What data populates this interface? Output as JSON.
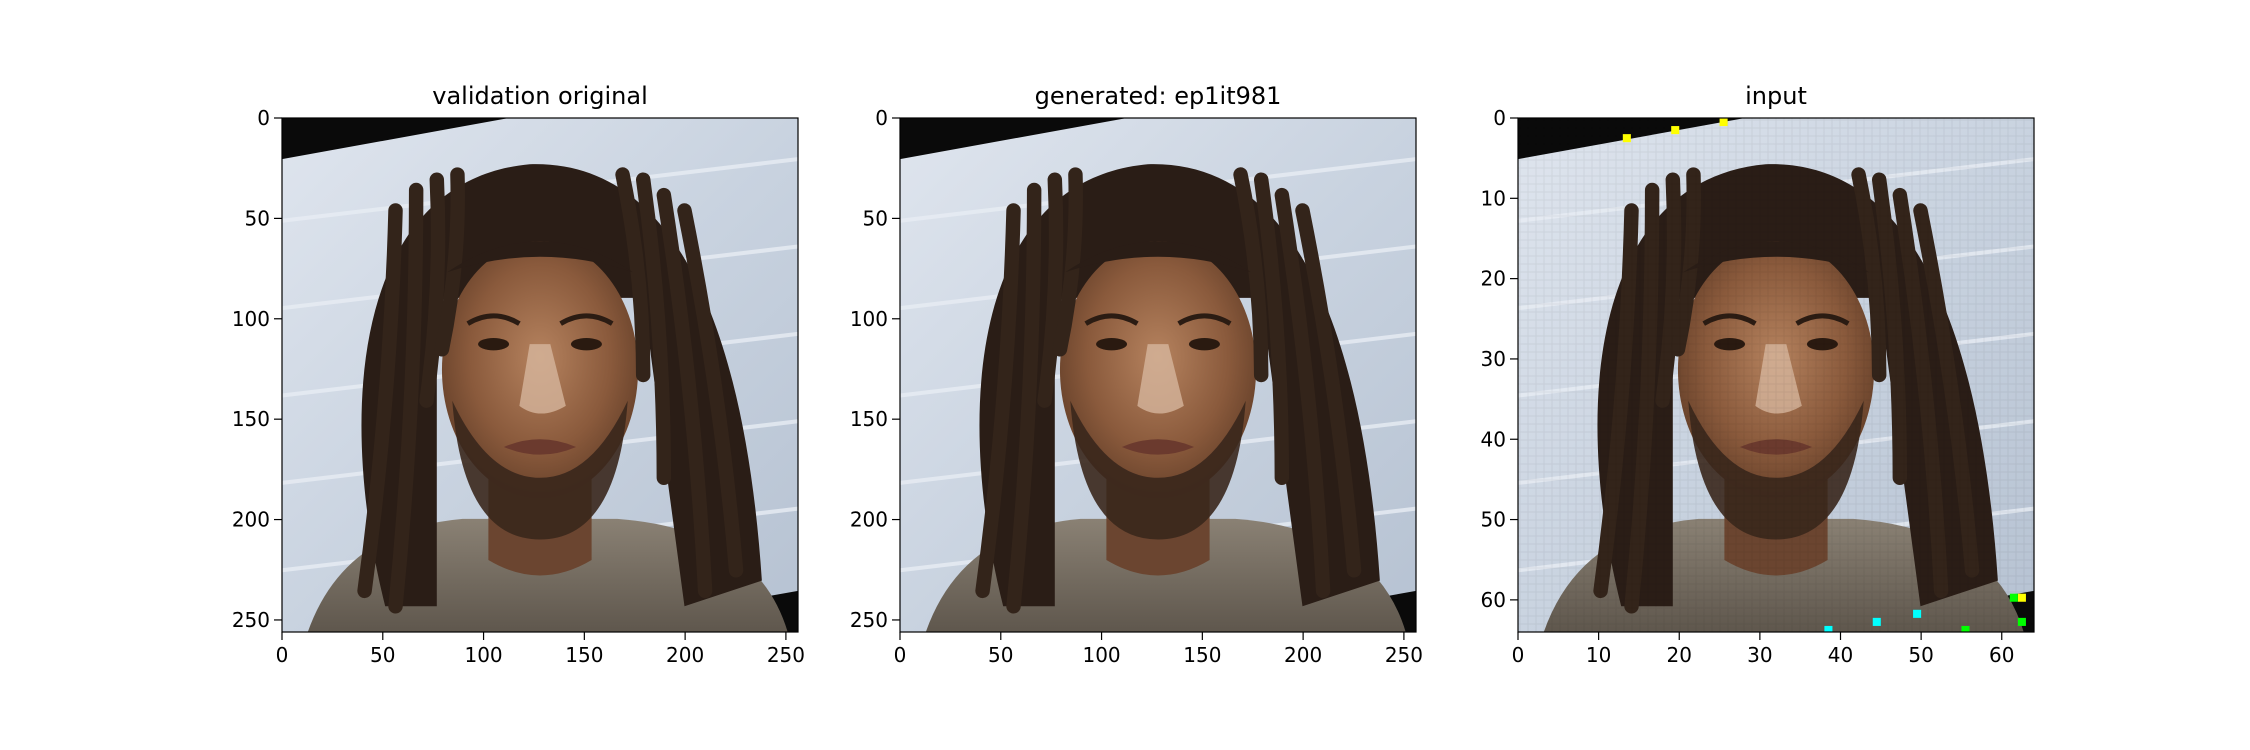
{
  "chart_data": [
    {
      "type": "image",
      "title": "validation original",
      "xlim": [
        0,
        256
      ],
      "ylim": [
        256,
        0
      ],
      "xticks": [
        0,
        50,
        100,
        150,
        200,
        250
      ],
      "yticks": [
        0,
        50,
        100,
        150,
        200,
        250
      ]
    },
    {
      "type": "image",
      "title": "generated: ep1it981",
      "xlim": [
        0,
        256
      ],
      "ylim": [
        256,
        0
      ],
      "xticks": [
        0,
        50,
        100,
        150,
        200,
        250
      ],
      "yticks": [
        0,
        50,
        100,
        150,
        200,
        250
      ]
    },
    {
      "type": "image",
      "title": "input",
      "xlim": [
        0,
        64
      ],
      "ylim": [
        64,
        0
      ],
      "xticks": [
        0,
        10,
        20,
        30,
        40,
        50,
        60
      ],
      "yticks": [
        0,
        10,
        20,
        30,
        40,
        50,
        60
      ]
    }
  ]
}
